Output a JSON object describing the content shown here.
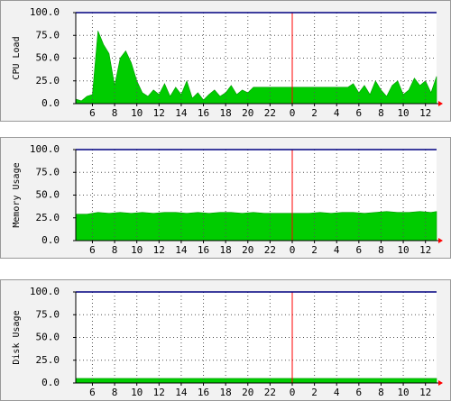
{
  "chart_data": [
    {
      "type": "area",
      "ylabel": "CPU Load",
      "color": "#00cc00",
      "grid": true,
      "vline": 24,
      "vline_color": "#ff0000",
      "x": [
        4.5,
        5,
        5.5,
        6,
        6.5,
        7,
        7.5,
        8,
        8.5,
        9,
        9.5,
        10,
        10.5,
        11,
        11.5,
        12,
        12.5,
        13,
        13.5,
        14,
        14.5,
        15,
        15.5,
        16,
        16.5,
        17,
        17.5,
        18,
        18.5,
        19,
        19.5,
        20,
        20.5,
        21,
        21.5,
        22,
        22.5,
        23,
        23.5,
        24,
        24.5,
        25,
        25.5,
        26,
        26.5,
        27,
        27.5,
        28,
        28.5,
        29,
        29.5,
        30,
        30.5,
        31,
        31.5,
        32,
        32.5,
        33,
        33.5,
        34,
        34.5,
        35,
        35.5,
        36,
        36.5,
        37
      ],
      "values": [
        5,
        3,
        8,
        10,
        80,
        65,
        55,
        20,
        50,
        58,
        45,
        25,
        12,
        8,
        15,
        10,
        22,
        8,
        18,
        10,
        25,
        6,
        12,
        4,
        10,
        15,
        8,
        12,
        20,
        10,
        15,
        12,
        18,
        18,
        18,
        18,
        18,
        18,
        18,
        18,
        18,
        18,
        18,
        18,
        18,
        18,
        18,
        18,
        18,
        18,
        22,
        12,
        20,
        10,
        25,
        15,
        8,
        20,
        25,
        10,
        15,
        28,
        20,
        25,
        12,
        30
      ],
      "xlim": [
        4.5,
        37
      ],
      "xticks": [
        6,
        8,
        10,
        12,
        14,
        16,
        18,
        20,
        22,
        {
          "value": 24,
          "label": "0"
        },
        {
          "value": 26,
          "label": "2"
        },
        {
          "value": 28,
          "label": "4"
        },
        {
          "value": 30,
          "label": "6"
        },
        {
          "value": 32,
          "label": "8"
        },
        {
          "value": 34,
          "label": "10"
        },
        {
          "value": 36,
          "label": "12"
        }
      ],
      "ylim": [
        0,
        100
      ],
      "yticks": [
        {
          "value": 0,
          "label": "0.0"
        },
        {
          "value": 25,
          "label": "25.0"
        },
        {
          "value": 50,
          "label": "50.0"
        },
        {
          "value": 75,
          "label": "75.0"
        },
        {
          "value": 100,
          "label": "100.0"
        }
      ]
    },
    {
      "type": "area",
      "ylabel": "Memory Usage",
      "color": "#00cc00",
      "grid": true,
      "vline": 24,
      "vline_color": "#ff0000",
      "x": [
        4.5,
        5.5,
        6.5,
        7.5,
        8.5,
        9.5,
        10.5,
        11.5,
        12.5,
        13.5,
        14.5,
        15.5,
        16.5,
        17.5,
        18.5,
        19.5,
        20.5,
        21.5,
        22.5,
        23.5,
        24.5,
        25.5,
        26.5,
        27.5,
        28.5,
        29.5,
        30.5,
        31.5,
        32.5,
        33.5,
        34.5,
        35.5,
        36.5,
        37
      ],
      "values": [
        29,
        29,
        31,
        30,
        31,
        30,
        31,
        30,
        31,
        31,
        30,
        31,
        30,
        31,
        31,
        30,
        31,
        30,
        30,
        30,
        30,
        30,
        31,
        30,
        31,
        31,
        30,
        31,
        32,
        31,
        31,
        32,
        31,
        32
      ],
      "xlim": [
        4.5,
        37
      ],
      "xticks": [
        6,
        8,
        10,
        12,
        14,
        16,
        18,
        20,
        22,
        {
          "value": 24,
          "label": "0"
        },
        {
          "value": 26,
          "label": "2"
        },
        {
          "value": 28,
          "label": "4"
        },
        {
          "value": 30,
          "label": "6"
        },
        {
          "value": 32,
          "label": "8"
        },
        {
          "value": 34,
          "label": "10"
        },
        {
          "value": 36,
          "label": "12"
        }
      ],
      "ylim": [
        0,
        100
      ],
      "yticks": [
        {
          "value": 0,
          "label": "0.0"
        },
        {
          "value": 25,
          "label": "25.0"
        },
        {
          "value": 50,
          "label": "50.0"
        },
        {
          "value": 75,
          "label": "75.0"
        },
        {
          "value": 100,
          "label": "100.0"
        }
      ]
    },
    {
      "type": "area",
      "ylabel": "Disk Usage",
      "color": "#00cc00",
      "grid": true,
      "vline": 24,
      "vline_color": "#ff0000",
      "x": [
        4.5,
        37
      ],
      "values": [
        5,
        5
      ],
      "xlim": [
        4.5,
        37
      ],
      "xticks": [
        6,
        8,
        10,
        12,
        14,
        16,
        18,
        20,
        22,
        {
          "value": 24,
          "label": "0"
        },
        {
          "value": 26,
          "label": "2"
        },
        {
          "value": 28,
          "label": "4"
        },
        {
          "value": 30,
          "label": "6"
        },
        {
          "value": 32,
          "label": "8"
        },
        {
          "value": 34,
          "label": "10"
        },
        {
          "value": 36,
          "label": "12"
        }
      ],
      "ylim": [
        0,
        100
      ],
      "yticks": [
        {
          "value": 0,
          "label": "0.0"
        },
        {
          "value": 25,
          "label": "25.0"
        },
        {
          "value": 50,
          "label": "50.0"
        },
        {
          "value": 75,
          "label": "75.0"
        },
        {
          "value": 100,
          "label": "100.0"
        }
      ]
    }
  ]
}
